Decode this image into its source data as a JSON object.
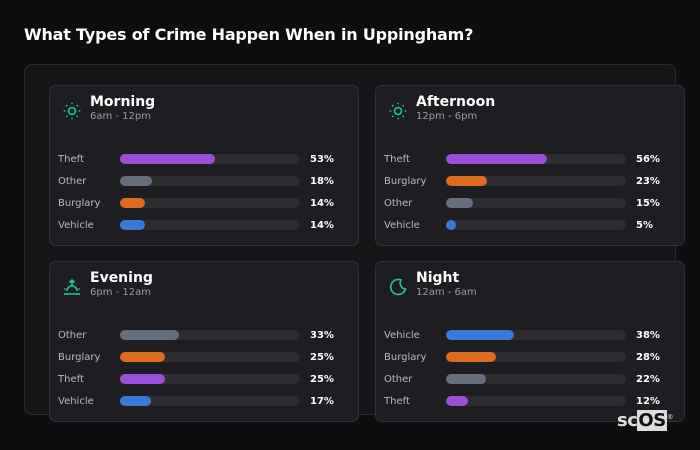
{
  "title": "What Types of Crime Happen When in Uppingham?",
  "colors": {
    "Theft": "#9b4fd8",
    "Other": "#666e7e",
    "Burglary": "#e06a1e",
    "Vehicle": "#3a78db",
    "accent": "#1fc79a"
  },
  "cards": [
    {
      "name": "Morning",
      "range": "6am - 12pm",
      "icon": "sun-icon",
      "rows": [
        {
          "label": "Theft",
          "value": 53,
          "text": "53%"
        },
        {
          "label": "Other",
          "value": 18,
          "text": "18%"
        },
        {
          "label": "Burglary",
          "value": 14,
          "text": "14%"
        },
        {
          "label": "Vehicle",
          "value": 14,
          "text": "14%"
        }
      ]
    },
    {
      "name": "Afternoon",
      "range": "12pm - 6pm",
      "icon": "sun-icon",
      "rows": [
        {
          "label": "Theft",
          "value": 56,
          "text": "56%"
        },
        {
          "label": "Burglary",
          "value": 23,
          "text": "23%"
        },
        {
          "label": "Other",
          "value": 15,
          "text": "15%"
        },
        {
          "label": "Vehicle",
          "value": 5,
          "text": "5%"
        }
      ]
    },
    {
      "name": "Evening",
      "range": "6pm - 12am",
      "icon": "sunset-icon",
      "rows": [
        {
          "label": "Other",
          "value": 33,
          "text": "33%"
        },
        {
          "label": "Burglary",
          "value": 25,
          "text": "25%"
        },
        {
          "label": "Theft",
          "value": 25,
          "text": "25%"
        },
        {
          "label": "Vehicle",
          "value": 17,
          "text": "17%"
        }
      ]
    },
    {
      "name": "Night",
      "range": "12am - 6am",
      "icon": "moon-icon",
      "rows": [
        {
          "label": "Vehicle",
          "value": 38,
          "text": "38%"
        },
        {
          "label": "Burglary",
          "value": 28,
          "text": "28%"
        },
        {
          "label": "Other",
          "value": 22,
          "text": "22%"
        },
        {
          "label": "Theft",
          "value": 12,
          "text": "12%"
        }
      ]
    }
  ],
  "logo": {
    "a": "sc",
    "b": "OS",
    "mark": "®"
  }
}
